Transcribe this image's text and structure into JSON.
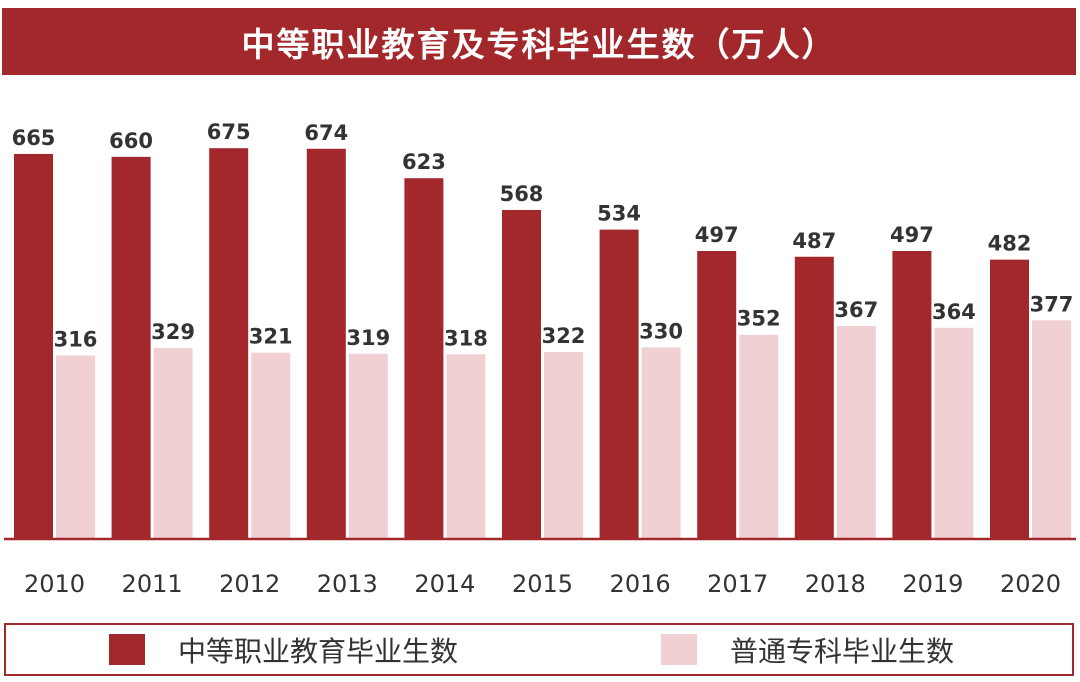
{
  "colors": {
    "title_bg": "#a3282c",
    "series_primary": "#a3282c",
    "series_secondary": "#f0d0d2",
    "axis_line": "#a3282c",
    "value_label": "#333333",
    "tick_label": "#333333"
  },
  "chart_data": {
    "type": "bar",
    "title": "中等职业教育及专科毕业生数（万人）",
    "xlabel": "",
    "ylabel": "",
    "ylim": [
      0,
      700
    ],
    "grid": false,
    "legend_position": "bottom",
    "categories": [
      "2010",
      "2011",
      "2012",
      "2013",
      "2014",
      "2015",
      "2016",
      "2017",
      "2018",
      "2019",
      "2020"
    ],
    "series": [
      {
        "name": "中等职业教育毕业生数",
        "color": "#a3282c",
        "values": [
          665,
          660,
          675,
          674,
          623,
          568,
          534,
          497,
          487,
          497,
          482
        ]
      },
      {
        "name": "普通专科毕业生数",
        "color": "#f0d0d2",
        "values": [
          316,
          329,
          321,
          319,
          318,
          322,
          330,
          352,
          367,
          364,
          377
        ]
      }
    ]
  }
}
